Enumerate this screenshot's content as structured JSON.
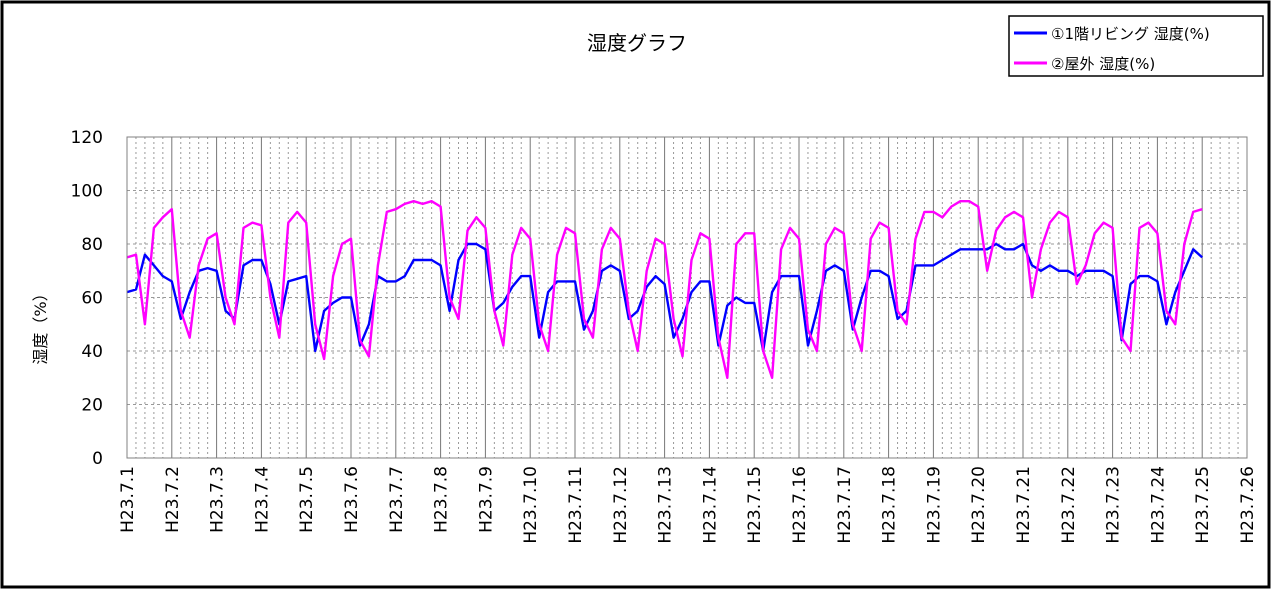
{
  "chart_data": {
    "type": "line",
    "title": "湿度グラフ",
    "xlabel": "",
    "ylabel": "湿度（%）",
    "ylim": [
      0,
      120
    ],
    "yticks": [
      0,
      20,
      40,
      60,
      80,
      100,
      120
    ],
    "grid": true,
    "legend_position": "top-right",
    "categories": [
      "H23.7.1",
      "H23.7.2",
      "H23.7.3",
      "H23.7.4",
      "H23.7.5",
      "H23.7.6",
      "H23.7.7",
      "H23.7.8",
      "H23.7.9",
      "H23.7.10",
      "H23.7.11",
      "H23.7.12",
      "H23.7.13",
      "H23.7.14",
      "H23.7.15",
      "H23.7.16",
      "H23.7.17",
      "H23.7.18",
      "H23.7.19",
      "H23.7.20",
      "H23.7.21",
      "H23.7.22",
      "H23.7.23",
      "H23.7.24",
      "H23.7.25",
      "H23.7.26"
    ],
    "series": [
      {
        "name": "①1階リビング 湿度(%)",
        "color": "#0000ff",
        "values": [
          [
            62,
            63,
            76,
            72,
            68
          ],
          [
            66,
            52,
            62,
            70,
            71
          ],
          [
            70,
            55,
            52,
            72,
            74
          ],
          [
            74,
            65,
            50,
            66,
            67
          ],
          [
            68,
            40,
            55,
            58,
            60
          ],
          [
            60,
            42,
            50,
            68,
            66
          ],
          [
            66,
            68,
            74,
            74,
            74
          ],
          [
            72,
            55,
            74,
            80,
            80
          ],
          [
            78,
            55,
            58,
            64,
            68
          ],
          [
            68,
            45,
            62,
            66,
            66
          ],
          [
            66,
            48,
            55,
            70,
            72
          ],
          [
            70,
            52,
            55,
            64,
            68
          ],
          [
            65,
            45,
            52,
            62,
            66
          ],
          [
            66,
            42,
            57,
            60,
            58
          ],
          [
            58,
            40,
            62,
            68,
            68
          ],
          [
            68,
            42,
            55,
            70,
            72
          ],
          [
            70,
            48,
            60,
            70,
            70
          ],
          [
            68,
            52,
            55,
            72,
            72
          ],
          [
            72,
            74,
            76,
            78,
            78
          ],
          [
            78,
            78,
            80,
            78,
            78
          ],
          [
            80,
            72,
            70,
            72,
            70
          ],
          [
            70,
            68,
            70,
            70,
            70
          ],
          [
            68,
            44,
            65,
            68,
            68
          ],
          [
            66,
            50,
            62,
            70,
            78
          ],
          [
            75
          ]
        ]
      },
      {
        "name": "②屋外 湿度(%)",
        "color": "#ff00ff",
        "values": [
          [
            75,
            76,
            50,
            86,
            90
          ],
          [
            93,
            55,
            45,
            72,
            82
          ],
          [
            84,
            60,
            50,
            86,
            88
          ],
          [
            87,
            60,
            45,
            88,
            92
          ],
          [
            88,
            50,
            37,
            68,
            80
          ],
          [
            82,
            44,
            38,
            72,
            92
          ],
          [
            93,
            95,
            96,
            95,
            96
          ],
          [
            94,
            60,
            52,
            85,
            90
          ],
          [
            86,
            55,
            42,
            76,
            86
          ],
          [
            82,
            50,
            40,
            76,
            86
          ],
          [
            84,
            52,
            45,
            78,
            86
          ],
          [
            82,
            55,
            40,
            70,
            82
          ],
          [
            80,
            52,
            38,
            74,
            84
          ],
          [
            82,
            45,
            30,
            80,
            84
          ],
          [
            84,
            40,
            30,
            78,
            86
          ],
          [
            82,
            48,
            40,
            80,
            86
          ],
          [
            84,
            50,
            40,
            82,
            88
          ],
          [
            86,
            55,
            50,
            82,
            92
          ],
          [
            92,
            90,
            94,
            96,
            96
          ],
          [
            94,
            70,
            85,
            90,
            92
          ],
          [
            90,
            60,
            78,
            88,
            92
          ],
          [
            90,
            65,
            72,
            84,
            88
          ],
          [
            86,
            45,
            40,
            86,
            88
          ],
          [
            84,
            55,
            50,
            80,
            92
          ],
          [
            93
          ]
        ]
      }
    ]
  }
}
